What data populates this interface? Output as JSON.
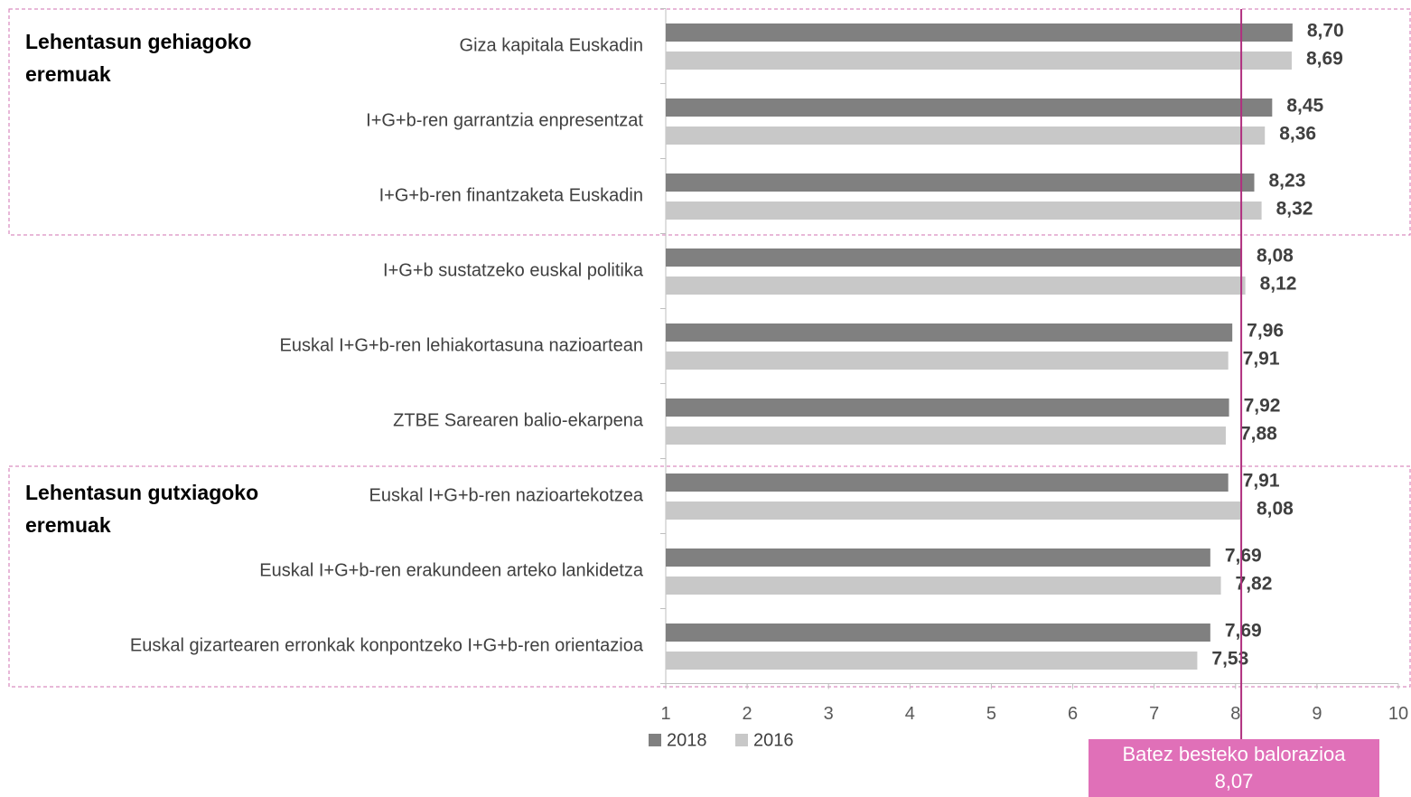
{
  "chart_data": {
    "type": "bar",
    "orientation": "horizontal",
    "categories": [
      "Giza kapitala Euskadin",
      "I+G+b-ren garrantzia enpresentzat",
      "I+G+b-ren finantzaketa Euskadin",
      "I+G+b sustatzeko euskal politika",
      "Euskal I+G+b-ren lehiakortasuna nazioartean",
      "ZTBE Sarearen balio-ekarpena",
      "Euskal I+G+b-ren nazioartekotzea",
      "Euskal I+G+b-ren erakundeen arteko lankidetza",
      "Euskal gizartearen erronkak konpontzeko I+G+b-ren orientazioa"
    ],
    "series": [
      {
        "name": "2018",
        "color": "#808080",
        "values": [
          8.7,
          8.45,
          8.23,
          8.08,
          7.96,
          7.92,
          7.91,
          7.69,
          7.69
        ],
        "value_labels": [
          "8,70",
          "8,45",
          "8,23",
          "8,08",
          "7,96",
          "7,92",
          "7,91",
          "7,69",
          "7,69"
        ]
      },
      {
        "name": "2016",
        "color": "#c8c8c8",
        "values": [
          8.69,
          8.36,
          8.32,
          8.12,
          7.91,
          7.88,
          8.08,
          7.82,
          7.53
        ],
        "value_labels": [
          "8,69",
          "8,36",
          "8,32",
          "8,12",
          "7,91",
          "7,88",
          "8,08",
          "7,82",
          "7,53"
        ]
      }
    ],
    "xlim": [
      1,
      10
    ],
    "xticks": [
      1,
      2,
      3,
      4,
      5,
      6,
      7,
      8,
      9,
      10
    ],
    "reference_line": {
      "value": 8.07,
      "color": "#b0307f",
      "label": "Batez besteko balorazioa",
      "value_label": "8,07"
    },
    "annotations": [
      "Lehentasun gehiagoko eremuak",
      "Lehentasun gutxiagoko eremuak"
    ]
  }
}
